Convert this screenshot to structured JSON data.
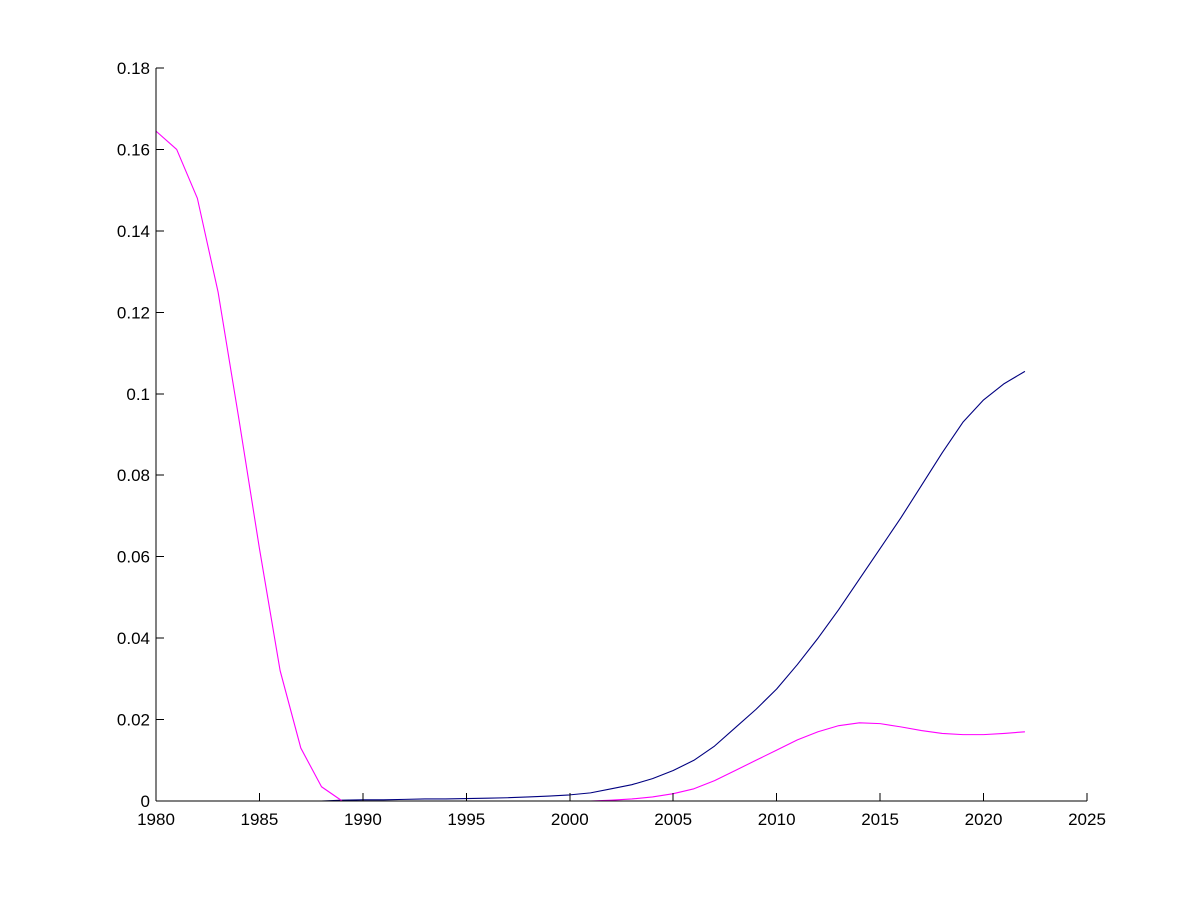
{
  "chart_data": {
    "type": "line",
    "title": "",
    "xlabel": "",
    "ylabel": "",
    "xlim": [
      1980,
      2025
    ],
    "ylim": [
      0,
      0.18
    ],
    "grid": false,
    "x_ticks": [
      1980,
      1985,
      1990,
      1995,
      2000,
      2005,
      2010,
      2015,
      2020,
      2025
    ],
    "x_tick_labels": [
      "1980",
      "1985",
      "1990",
      "1995",
      "2000",
      "2005",
      "2010",
      "2015",
      "2020",
      "2025"
    ],
    "y_ticks": [
      0,
      0.02,
      0.04,
      0.06,
      0.08,
      0.1,
      0.12,
      0.14,
      0.16,
      0.18
    ],
    "y_tick_labels": [
      "0",
      "0.02",
      "0.04",
      "0.06",
      "0.08",
      "0.1",
      "0.12",
      "0.14",
      "0.16",
      "0.18"
    ],
    "x": [
      1980,
      1981,
      1982,
      1983,
      1984,
      1985,
      1986,
      1987,
      1988,
      1989,
      1990,
      1991,
      1992,
      1993,
      1994,
      1995,
      1996,
      1997,
      1998,
      1999,
      2000,
      2001,
      2002,
      2003,
      2004,
      2005,
      2006,
      2007,
      2008,
      2009,
      2010,
      2011,
      2012,
      2013,
      2014,
      2015,
      2016,
      2017,
      2018,
      2019,
      2020,
      2021,
      2022
    ],
    "series": [
      {
        "color": "#000080",
        "values": [
          0,
          0,
          0,
          0,
          0,
          0,
          0,
          0,
          0,
          0.0002,
          0.0003,
          0.0003,
          0.0004,
          0.0005,
          0.0005,
          0.0006,
          0.0007,
          0.0008,
          0.001,
          0.0012,
          0.0015,
          0.002,
          0.003,
          0.004,
          0.0055,
          0.0075,
          0.01,
          0.0135,
          0.018,
          0.0225,
          0.0275,
          0.0335,
          0.04,
          0.047,
          0.0545,
          0.062,
          0.0695,
          0.0775,
          0.0855,
          0.093,
          0.0985,
          0.1025,
          0.1055
        ]
      },
      {
        "color": "#ff00ff",
        "values": [
          0.1645,
          0.16,
          0.148,
          0.125,
          0.094,
          0.062,
          0.032,
          0.013,
          0.0035,
          0,
          0,
          0,
          0,
          0,
          0,
          0,
          0,
          0,
          0,
          0,
          0,
          0,
          0.0002,
          0.0005,
          0.001,
          0.0018,
          0.003,
          0.005,
          0.0075,
          0.01,
          0.0125,
          0.015,
          0.017,
          0.0185,
          0.0192,
          0.019,
          0.0182,
          0.0173,
          0.0166,
          0.0163,
          0.0163,
          0.0166,
          0.017
        ]
      }
    ]
  }
}
